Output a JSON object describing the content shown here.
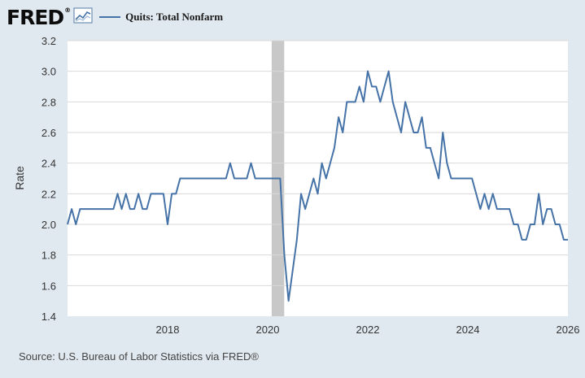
{
  "header": {
    "logo_text": "FRED",
    "logo_reg": "®",
    "graph_icon": "line-graph-icon",
    "series_label": "Quits: Total Nonfarm"
  },
  "source": "Source: U.S. Bureau of Labor Statistics via FRED®",
  "colors": {
    "background": "#e1e9f0",
    "plot_background": "#ffffff",
    "series": "#4572a7",
    "grid": "#d9d9d9",
    "recession": "#c8c8c8"
  },
  "chart_data": {
    "type": "line",
    "title": "Quits: Total Nonfarm",
    "xlabel": "",
    "ylabel": "Rate",
    "xlim": [
      2016,
      2026
    ],
    "ylim": [
      1.4,
      3.2
    ],
    "x_ticks": [
      "2018",
      "2020",
      "2022",
      "2024",
      "2026"
    ],
    "y_ticks": [
      "1.4",
      "1.6",
      "1.8",
      "2.0",
      "2.2",
      "2.4",
      "2.6",
      "2.8",
      "3.0",
      "3.2"
    ],
    "grid": true,
    "recession_shading": [
      {
        "start": 2020.08,
        "end": 2020.33
      }
    ],
    "series": [
      {
        "name": "Quits: Total Nonfarm",
        "x": [
          2016.0,
          2016.083,
          2016.167,
          2016.25,
          2016.333,
          2016.417,
          2016.5,
          2016.583,
          2016.667,
          2016.75,
          2016.833,
          2016.917,
          2017.0,
          2017.083,
          2017.167,
          2017.25,
          2017.333,
          2017.417,
          2017.5,
          2017.583,
          2017.667,
          2017.75,
          2017.833,
          2017.917,
          2018.0,
          2018.083,
          2018.167,
          2018.25,
          2018.333,
          2018.417,
          2018.5,
          2018.583,
          2018.667,
          2018.75,
          2018.833,
          2018.917,
          2019.0,
          2019.083,
          2019.167,
          2019.25,
          2019.333,
          2019.417,
          2019.5,
          2019.583,
          2019.667,
          2019.75,
          2019.833,
          2019.917,
          2020.0,
          2020.083,
          2020.167,
          2020.25,
          2020.333,
          2020.417,
          2020.5,
          2020.583,
          2020.667,
          2020.75,
          2020.833,
          2020.917,
          2021.0,
          2021.083,
          2021.167,
          2021.25,
          2021.333,
          2021.417,
          2021.5,
          2021.583,
          2021.667,
          2021.75,
          2021.833,
          2021.917,
          2022.0,
          2022.083,
          2022.167,
          2022.25,
          2022.333,
          2022.417,
          2022.5,
          2022.583,
          2022.667,
          2022.75,
          2022.833,
          2022.917,
          2023.0,
          2023.083,
          2023.167,
          2023.25,
          2023.333,
          2023.417,
          2023.5,
          2023.583,
          2023.667,
          2023.75,
          2023.833,
          2023.917,
          2024.0,
          2024.083,
          2024.167,
          2024.25,
          2024.333,
          2024.417,
          2024.5,
          2024.583,
          2024.667,
          2024.75,
          2024.833,
          2024.917,
          2025.0,
          2025.083,
          2025.167,
          2025.25,
          2025.333,
          2025.417,
          2025.5,
          2025.583,
          2025.667,
          2025.75,
          2025.833,
          2025.917,
          2026.0
        ],
        "y": [
          2.0,
          2.1,
          2.0,
          2.1,
          2.1,
          2.1,
          2.1,
          2.1,
          2.1,
          2.1,
          2.1,
          2.1,
          2.2,
          2.1,
          2.2,
          2.1,
          2.1,
          2.2,
          2.1,
          2.1,
          2.2,
          2.2,
          2.2,
          2.2,
          2.0,
          2.2,
          2.2,
          2.3,
          2.3,
          2.3,
          2.3,
          2.3,
          2.3,
          2.3,
          2.3,
          2.3,
          2.3,
          2.3,
          2.3,
          2.4,
          2.3,
          2.3,
          2.3,
          2.3,
          2.4,
          2.3,
          2.3,
          2.3,
          2.3,
          2.3,
          2.3,
          2.3,
          1.8,
          1.5,
          1.7,
          1.9,
          2.2,
          2.1,
          2.2,
          2.3,
          2.2,
          2.4,
          2.3,
          2.4,
          2.5,
          2.7,
          2.6,
          2.8,
          2.8,
          2.8,
          2.9,
          2.8,
          3.0,
          2.9,
          2.9,
          2.8,
          2.9,
          3.0,
          2.8,
          2.7,
          2.6,
          2.8,
          2.7,
          2.6,
          2.6,
          2.7,
          2.5,
          2.5,
          2.4,
          2.3,
          2.6,
          2.4,
          2.3,
          2.3,
          2.3,
          2.3,
          2.3,
          2.3,
          2.2,
          2.1,
          2.2,
          2.1,
          2.2,
          2.1,
          2.1,
          2.1,
          2.1,
          2.0,
          2.0,
          1.9,
          1.9,
          2.0,
          2.0,
          2.2,
          2.0,
          2.1,
          2.1,
          2.0,
          2.0,
          1.9,
          1.9
        ]
      }
    ]
  }
}
